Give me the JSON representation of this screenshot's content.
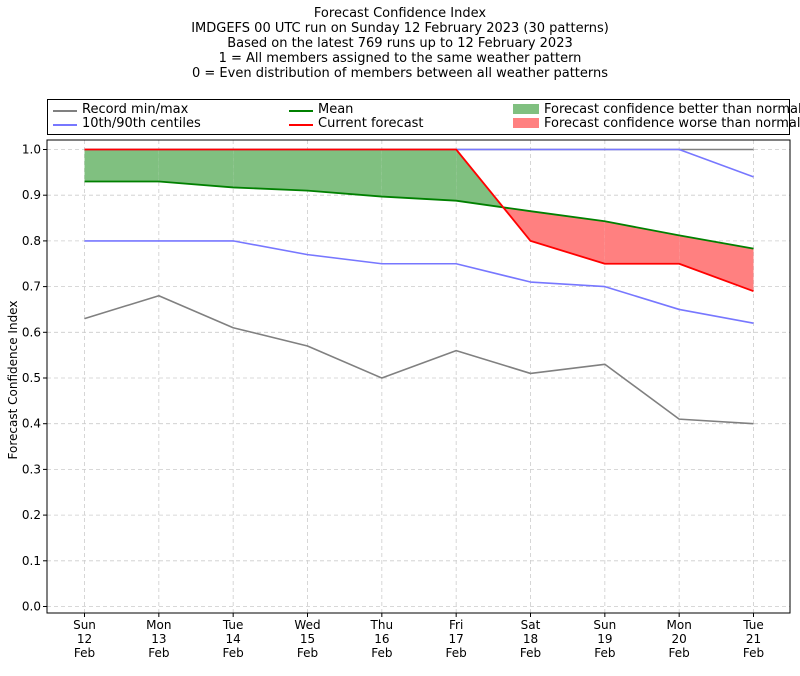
{
  "title_lines": [
    "Forecast Confidence Index",
    "IMDGEFS 00 UTC run on Sunday 12 February 2023 (30 patterns)",
    "Based on the latest 769 runs up to 12 February 2023",
    "1 = All members assigned to the same weather pattern",
    "0 = Even distribution of members between all weather patterns"
  ],
  "legend": {
    "record": "Record min/max",
    "centiles": "10th/90th centiles",
    "mean": "Mean",
    "current": "Current forecast",
    "better": "Forecast confidence better than normal",
    "worse": "Forecast confidence worse than normal",
    "placement": "top, above plot"
  },
  "colors": {
    "record": "#808080",
    "centiles": "#7777ff",
    "mean": "#008000",
    "current": "#ff0000",
    "better": "#80c080",
    "worse": "#ff8080"
  },
  "chart_data": {
    "type": "line",
    "title": "Forecast Confidence Index",
    "xlabel": "",
    "ylabel": "Forecast Confidence Index",
    "ylim": [
      0.0,
      1.0
    ],
    "yticks": [
      "0.0",
      "0.1",
      "0.2",
      "0.3",
      "0.4",
      "0.5",
      "0.6",
      "0.7",
      "0.8",
      "0.9",
      "1.0"
    ],
    "grid": true,
    "categories": [
      [
        "Sun",
        "12",
        "Feb"
      ],
      [
        "Mon",
        "13",
        "Feb"
      ],
      [
        "Tue",
        "14",
        "Feb"
      ],
      [
        "Wed",
        "15",
        "Feb"
      ],
      [
        "Thu",
        "16",
        "Feb"
      ],
      [
        "Fri",
        "17",
        "Feb"
      ],
      [
        "Sat",
        "18",
        "Feb"
      ],
      [
        "Sun",
        "19",
        "Feb"
      ],
      [
        "Mon",
        "20",
        "Feb"
      ],
      [
        "Tue",
        "21",
        "Feb"
      ]
    ],
    "series": [
      {
        "name": "Record min/max",
        "role": "record_max",
        "values": [
          1.0,
          1.0,
          1.0,
          1.0,
          1.0,
          1.0,
          1.0,
          1.0,
          1.0,
          1.0
        ]
      },
      {
        "name": "Record min/max",
        "role": "record_min",
        "values": [
          0.63,
          0.68,
          0.61,
          0.57,
          0.5,
          0.56,
          0.51,
          0.53,
          0.41,
          0.4
        ]
      },
      {
        "name": "10th/90th centiles",
        "role": "p90",
        "values": [
          1.0,
          1.0,
          1.0,
          1.0,
          1.0,
          1.0,
          1.0,
          1.0,
          1.0,
          0.94
        ]
      },
      {
        "name": "10th/90th centiles",
        "role": "p10",
        "values": [
          0.8,
          0.8,
          0.8,
          0.77,
          0.75,
          0.75,
          0.71,
          0.7,
          0.65,
          0.62
        ]
      },
      {
        "name": "Mean",
        "role": "mean",
        "values": [
          0.93,
          0.93,
          0.917,
          0.91,
          0.897,
          0.888,
          0.865,
          0.843,
          0.812,
          0.783
        ]
      },
      {
        "name": "Current forecast",
        "role": "current",
        "values": [
          1.0,
          1.0,
          1.0,
          1.0,
          1.0,
          1.0,
          0.8,
          0.75,
          0.75,
          0.69
        ]
      }
    ]
  }
}
